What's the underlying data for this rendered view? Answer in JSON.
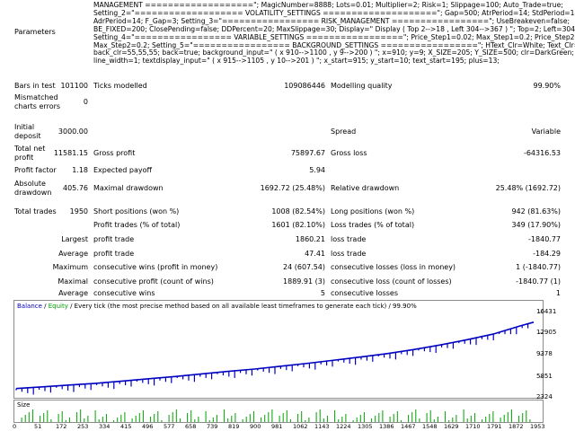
{
  "parameters": {
    "label": "Parameters",
    "lines": [
      "MANAGEMENT ===================\"; MagicNumber=8888; Lots=0.01; Multiplier=2; Risk=1; Slippage=100; Auto_Trade=true;",
      "Setting_2=\"=================== VOLATILITY_SETTINGS ====================\"; Gap=500; AtrPeriod=14; StdPeriod=14;",
      "AdrPeriod=14; F_Gap=3; Setting_3=\"================= RISK_MANAGEMENT =================\"; UseBreakeven=false;",
      "BE_FIXED=200; ClosePending=false; DDPercent=20; MaxSlippage=30; Display=\" Display ( Top 2-->18 , Left 304-->367 ) \"; Top=2; Left=304;",
      "Setting_4=\"================= VARIABLE_SETTINGS =================\"; Price_Step1=0.02; Max_Step1=0.2; Price_Step2=0.01;",
      "Max_Step2=0.2; Setting_5=\"================= BACKGROUND_SETTINGS =================\"; HText_Clr=White; Text_Clr=White;",
      "back_clr=55,55,55; back=true; background_input=\" ( x 910-->1100 , y 9-->200 ) \"; x=910; y=9; X_SIZE=205; Y_SIZE=500; clr=DarkGreen;",
      "line_width=1; textdisplay_input=\" ( x 915-->1105 , y 10-->201 ) \"; x_start=915; y_start=10; text_start=195; plus=13;"
    ]
  },
  "bars": {
    "label": "Bars in test",
    "value": "101100",
    "ticks_label": "Ticks modelled",
    "ticks_value": "109086446",
    "quality_label": "Modelling quality",
    "quality_value": "99.90%"
  },
  "mismatch": {
    "label1": "Mismatched",
    "label2": "charts errors",
    "value": "0"
  },
  "deposit": {
    "label1": "Initial",
    "label2": "deposit",
    "value": "3000.00",
    "spread_label": "Spread",
    "spread_value": "Variable"
  },
  "profit": {
    "label1": "Total net",
    "label2": "profit",
    "value": "11581.15",
    "gp_label": "Gross profit",
    "gp_value": "75897.67",
    "gl_label": "Gross loss",
    "gl_value": "-64316.53"
  },
  "pf": {
    "label": "Profit factor",
    "value": "1.18",
    "ep_label": "Expected payoff",
    "ep_value": "5.94"
  },
  "dd": {
    "label1": "Absolute",
    "label2": "drawdown",
    "value": "405.76",
    "md_label": "Maximal drawdown",
    "md_value": "1692.72 (25.48%)",
    "rd_label": "Relative drawdown",
    "rd_value": "25.48% (1692.72)"
  },
  "trades": {
    "label": "Total trades",
    "value": "1950",
    "sp_label": "Short positions (won %)",
    "sp_value": "1008 (82.54%)",
    "lp_label": "Long positions (won %)",
    "lp_value": "942 (81.63%)"
  },
  "pt": {
    "label": "Profit trades (% of total)",
    "value": "1601 (82.10%)",
    "lt_label": "Loss trades (% of total)",
    "lt_value": "349 (17.90%)"
  },
  "largest": {
    "label": "Largest",
    "p_label": "profit trade",
    "p_value": "1860.21",
    "l_label": "loss trade",
    "l_value": "-1840.77"
  },
  "average": {
    "label": "Average",
    "p_label": "profit trade",
    "p_value": "47.41",
    "l_label": "loss trade",
    "l_value": "-184.29"
  },
  "maximum": {
    "label": "Maximum",
    "w_label": "consecutive wins (profit in money)",
    "w_value": "24 (607.54)",
    "l_label": "consecutive losses (loss in money)",
    "l_value": "1 (-1840.77)"
  },
  "maximal": {
    "label": "Maximal",
    "w_label": "consecutive profit (count of wins)",
    "w_value": "1889.91 (3)",
    "l_label": "consecutive loss (count of losses)",
    "l_value": "-1840.77 (1)"
  },
  "avgc": {
    "label": "Average",
    "w_label": "consecutive wins",
    "w_value": "5",
    "l_label": "consecutive losses",
    "l_value": "1"
  },
  "chart": {
    "legend_balance": "Balance",
    "legend_sep": " / ",
    "legend_equity": "Equity",
    "legend_rest": " / Every tick (the most precise method based on all available least timeframes to generate each tick) / 99.90%",
    "y_ticks": [
      "16431",
      "12905",
      "9378",
      "5851",
      "2324"
    ],
    "size_label": "Size",
    "x_ticks": [
      "0",
      "51",
      "172",
      "253",
      "334",
      "415",
      "496",
      "577",
      "658",
      "739",
      "819",
      "900",
      "981",
      "1062",
      "1143",
      "1224",
      "1305",
      "1386",
      "1467",
      "1548",
      "1629",
      "1710",
      "1791",
      "1872",
      "1953"
    ],
    "balance_color": "#0000c0",
    "equity_color": "#00a000"
  },
  "chart_data": {
    "type": "line",
    "title": "",
    "xlabel": "",
    "ylabel": "",
    "x_range": [
      0,
      1953
    ],
    "ylim": [
      2324,
      16431
    ],
    "series": [
      {
        "name": "Balance",
        "x": [
          0,
          100,
          200,
          300,
          400,
          500,
          600,
          700,
          800,
          900,
          1000,
          1100,
          1200,
          1300,
          1400,
          1500,
          1600,
          1700,
          1800,
          1900,
          1953
        ],
        "values": [
          3000,
          3300,
          3600,
          3900,
          4300,
          4700,
          5100,
          5550,
          6000,
          6400,
          6900,
          7400,
          7950,
          8500,
          9100,
          9800,
          10600,
          11500,
          12500,
          13900,
          14580
        ]
      }
    ]
  }
}
